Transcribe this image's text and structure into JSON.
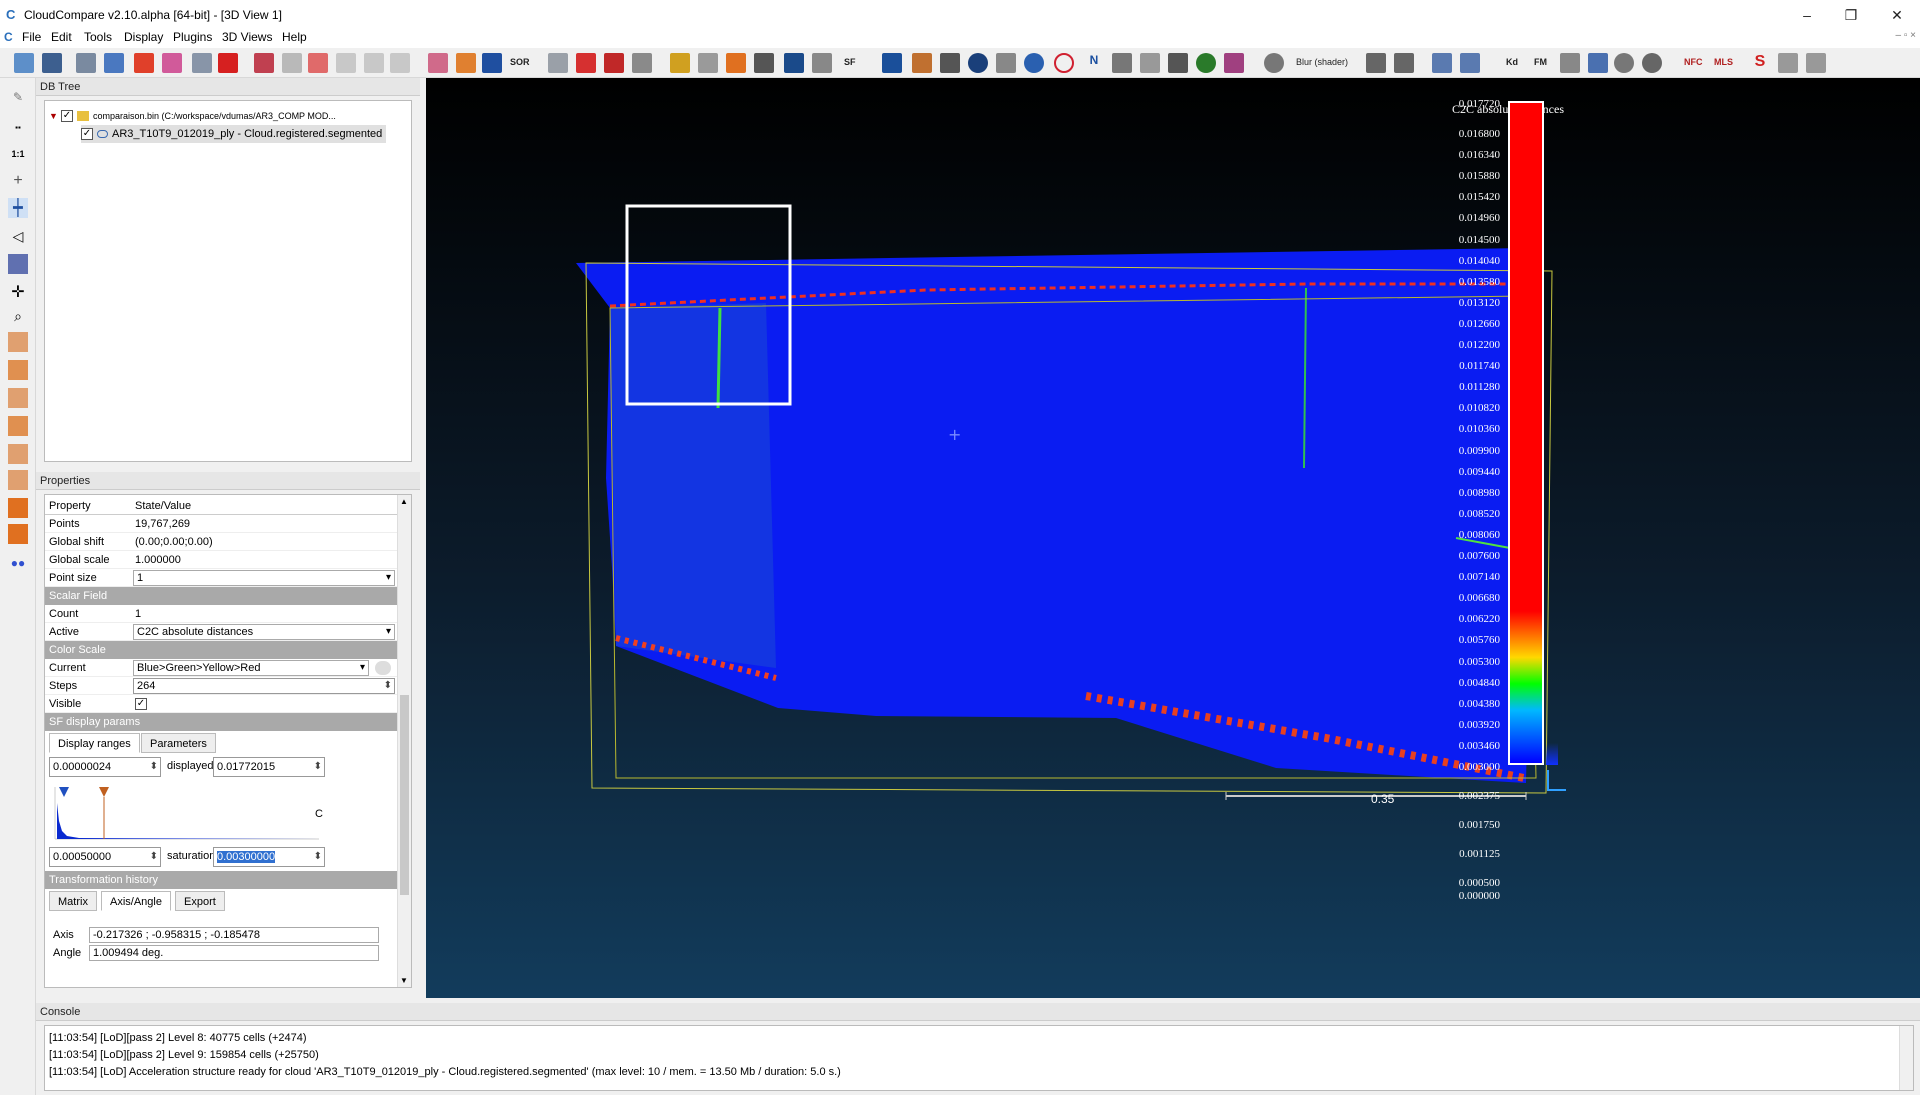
{
  "window": {
    "title": "CloudCompare v2.10.alpha [64-bit] - [3D View 1]",
    "icon": "cloudcompare-logo-icon",
    "controls": [
      "–",
      "❐",
      "✕"
    ]
  },
  "menu": [
    "File",
    "Edit",
    "Tools",
    "Display",
    "Plugins",
    "3D Views",
    "Help"
  ],
  "toolbar": {
    "sor_label": "SOR",
    "sf_label": "SF",
    "blur_label": "Blur (shader)",
    "kd_label": "Kd",
    "fm_label": "FM",
    "nfc_label": "NFC",
    "mls_label": "MLS"
  },
  "db_tree": {
    "title": "DB Tree",
    "items": [
      {
        "label": "comparaison.bin (C:/workspace/vdumas/AR3_COMP MOD...",
        "checked": true,
        "icon": "folder-icon"
      },
      {
        "label": "AR3_T10T9_012019_ply - Cloud.registered.segmented",
        "checked": true,
        "icon": "cloud-icon"
      }
    ]
  },
  "properties": {
    "title": "Properties",
    "header": {
      "key": "Property",
      "value": "State/Value"
    },
    "points_label": "Points",
    "points": "19,767,269",
    "global_shift_label": "Global shift",
    "global_shift": "(0.00;0.00;0.00)",
    "global_scale_label": "Global scale",
    "global_scale": "1.000000",
    "point_size_label": "Point size",
    "point_size": "1",
    "scalar_field_section": "Scalar Field",
    "count_label": "Count",
    "count": "1",
    "active_label": "Active",
    "active": "C2C absolute distances",
    "color_scale_section": "Color Scale",
    "current_label": "Current",
    "current": "Blue>Green>Yellow>Red",
    "steps_label": "Steps",
    "steps": "264",
    "visible_label": "Visible",
    "visible": true,
    "sf_display_section": "SF display params",
    "tabs": [
      "Display ranges",
      "Parameters"
    ],
    "range_min": "0.00000024",
    "displayed_label": "displayed",
    "displayed": "0.01772015",
    "sat_min": "0.00050000",
    "saturation_label": "saturation",
    "saturation": "0.00300000",
    "transformation_section": "Transformation history",
    "transform_tabs": [
      "Matrix",
      "Axis/Angle",
      "Export"
    ],
    "axis_label": "Axis",
    "axis": "-0.217326 ; -0.958315 ; -0.185478",
    "angle_label": "Angle",
    "angle": "1.009494 deg."
  },
  "view3d": {
    "scale_title": "C2C absolute distances",
    "scale_values": [
      "0.017720",
      "0.016800",
      "0.016340",
      "0.015880",
      "0.015420",
      "0.014960",
      "0.014500",
      "0.014040",
      "0.013580",
      "0.013120",
      "0.012660",
      "0.012200",
      "0.011740",
      "0.011280",
      "0.010820",
      "0.010360",
      "0.009900",
      "0.009440",
      "0.008980",
      "0.008520",
      "0.008060",
      "0.007600",
      "0.007140",
      "0.006680",
      "0.006220",
      "0.005760",
      "0.005300",
      "0.004840",
      "0.004380",
      "0.003920",
      "0.003460",
      "0.003000",
      "0.002375",
      "0.001750",
      "0.001125",
      "0.000500",
      "0.000000"
    ],
    "scale_bar_label": "0.35"
  },
  "console": {
    "title": "Console",
    "lines": [
      "[11:03:54] [LoD][pass 2] Level 8: 40775 cells (+2474)",
      "[11:03:54] [LoD][pass 2] Level 9: 159854 cells (+25750)",
      "[11:03:54] [LoD] Acceleration structure ready for cloud 'AR3_T10T9_012019_ply - Cloud.registered.segmented' (max level: 10 / mem. = 13.50 Mb / duration: 5.0 s.)"
    ]
  }
}
